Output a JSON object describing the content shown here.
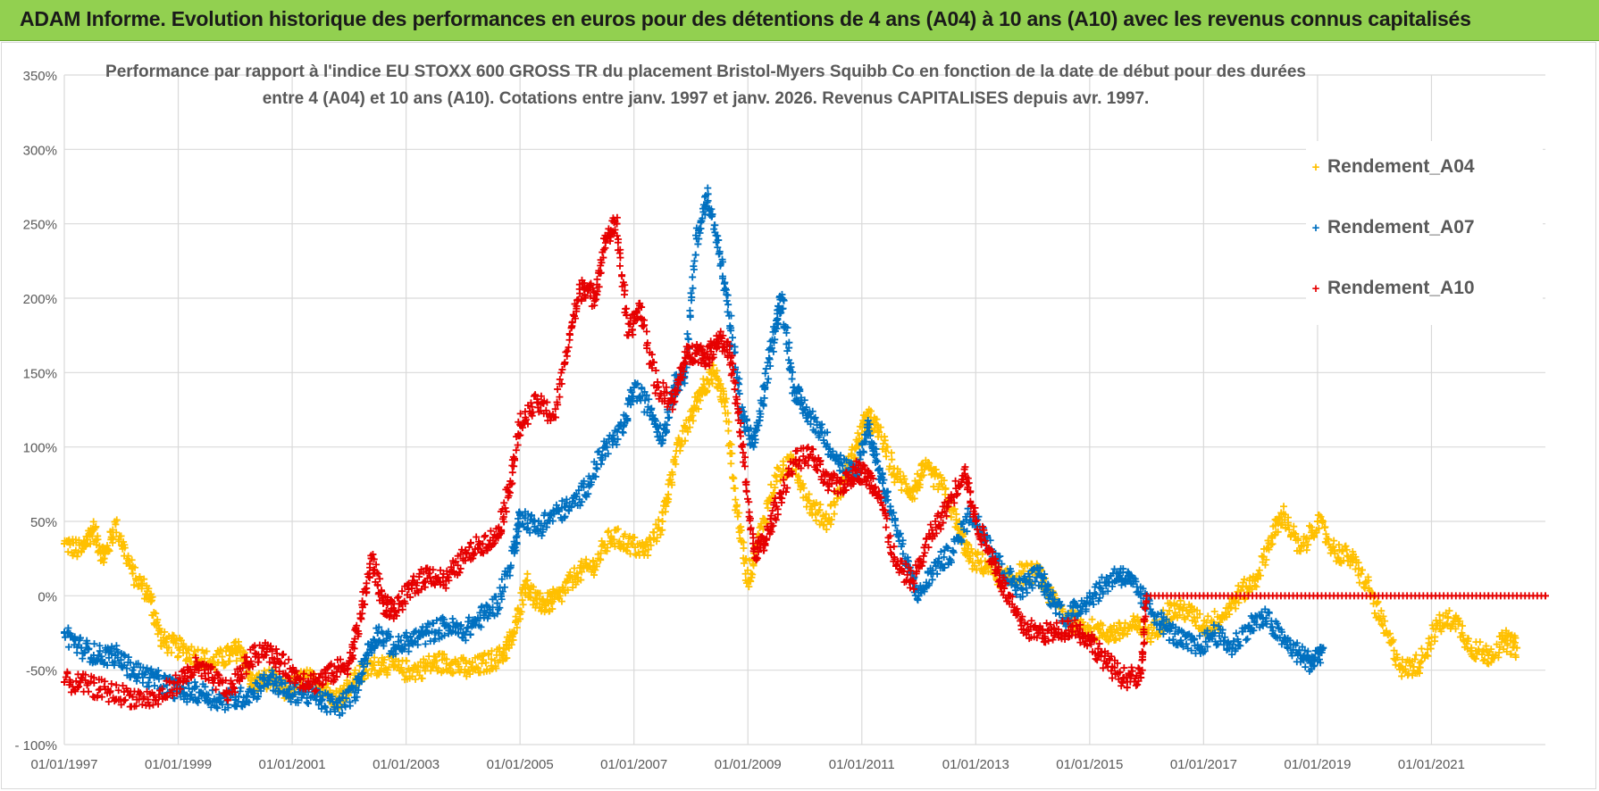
{
  "banner": {
    "title": "ADAM Informe. Evolution historique des performances en euros pour des détentions de 4 ans (A04) à 10 ans (A10) avec les revenus connus capitalisés",
    "background_color": "#92d050"
  },
  "chart_data": {
    "type": "scatter",
    "title_line1": "Performance par rapport à l'indice EU STOXX 600 GROSS TR  du placement Bristol-Myers Squibb Co en fonction de la date de début pour des durées",
    "title_line2": "entre 4 (A04) et 10 ans (A10).  Cotations entre janv. 1997 et janv. 2026. Revenus CAPITALISES depuis avr. 1997.",
    "xlabel": "",
    "ylabel": "",
    "x_range": [
      1997.0,
      2023.0
    ],
    "ylim": [
      -100,
      350
    ],
    "y_ticks": [
      350,
      300,
      250,
      200,
      150,
      100,
      50,
      0,
      -50,
      -100
    ],
    "y_tick_labels": [
      "350%",
      "300%",
      "250%",
      "200%",
      "150%",
      "100%",
      "50%",
      "0%",
      "-50%",
      "- 100%"
    ],
    "x_ticks": [
      1997,
      1999,
      2001,
      2003,
      2005,
      2007,
      2009,
      2011,
      2013,
      2015,
      2017,
      2019,
      2021
    ],
    "x_tick_labels": [
      "01/01/1997",
      "01/01/1999",
      "01/01/2001",
      "01/01/2003",
      "01/01/2005",
      "01/01/2007",
      "01/01/2009",
      "01/01/2011",
      "01/01/2013",
      "01/01/2015",
      "01/01/2017",
      "01/01/2019",
      "01/01/2021"
    ],
    "legend_position": "top-right",
    "series": [
      {
        "name": "Rendement_A04",
        "color": "#ffc000",
        "points": [
          [
            1997.0,
            35
          ],
          [
            1997.3,
            30
          ],
          [
            1997.5,
            45
          ],
          [
            1997.7,
            25
          ],
          [
            1997.9,
            48
          ],
          [
            1998.2,
            15
          ],
          [
            1998.5,
            0
          ],
          [
            1998.7,
            -30
          ],
          [
            1999.0,
            -35
          ],
          [
            1999.3,
            -40
          ],
          [
            1999.6,
            -45
          ],
          [
            1999.9,
            -40
          ],
          [
            2000.1,
            -35
          ],
          [
            2000.3,
            -60
          ],
          [
            2000.6,
            -55
          ],
          [
            2000.9,
            -65
          ],
          [
            2001.2,
            -55
          ],
          [
            2001.5,
            -60
          ],
          [
            2001.8,
            -70
          ],
          [
            2002.0,
            -60
          ],
          [
            2002.3,
            -50
          ],
          [
            2002.6,
            -45
          ],
          [
            2002.9,
            -50
          ],
          [
            2003.2,
            -50
          ],
          [
            2003.5,
            -45
          ],
          [
            2003.8,
            -45
          ],
          [
            2004.1,
            -50
          ],
          [
            2004.4,
            -45
          ],
          [
            2004.7,
            -40
          ],
          [
            2004.9,
            -25
          ],
          [
            2005.1,
            10
          ],
          [
            2005.3,
            -5
          ],
          [
            2005.5,
            -5
          ],
          [
            2005.7,
            0
          ],
          [
            2006.0,
            15
          ],
          [
            2006.3,
            20
          ],
          [
            2006.6,
            40
          ],
          [
            2006.9,
            35
          ],
          [
            2007.2,
            30
          ],
          [
            2007.5,
            50
          ],
          [
            2007.7,
            90
          ],
          [
            2008.0,
            120
          ],
          [
            2008.2,
            140
          ],
          [
            2008.4,
            150
          ],
          [
            2008.6,
            130
          ],
          [
            2008.8,
            60
          ],
          [
            2009.0,
            10
          ],
          [
            2009.2,
            40
          ],
          [
            2009.5,
            80
          ],
          [
            2009.8,
            90
          ],
          [
            2010.1,
            60
          ],
          [
            2010.4,
            50
          ],
          [
            2010.7,
            80
          ],
          [
            2010.9,
            100
          ],
          [
            2011.1,
            120
          ],
          [
            2011.3,
            110
          ],
          [
            2011.6,
            80
          ],
          [
            2011.9,
            70
          ],
          [
            2012.1,
            85
          ],
          [
            2012.4,
            75
          ],
          [
            2012.7,
            45
          ],
          [
            2012.9,
            25
          ],
          [
            2013.2,
            20
          ],
          [
            2013.5,
            10
          ],
          [
            2013.8,
            15
          ],
          [
            2014.1,
            15
          ],
          [
            2014.3,
            0
          ],
          [
            2014.6,
            -15
          ],
          [
            2014.9,
            -20
          ],
          [
            2015.2,
            -25
          ],
          [
            2015.5,
            -25
          ],
          [
            2015.8,
            -20
          ],
          [
            2016.1,
            -25
          ],
          [
            2016.4,
            -10
          ],
          [
            2016.7,
            -10
          ],
          [
            2017.0,
            -20
          ],
          [
            2017.3,
            -15
          ],
          [
            2017.6,
            0
          ],
          [
            2017.9,
            10
          ],
          [
            2018.2,
            40
          ],
          [
            2018.4,
            55
          ],
          [
            2018.7,
            30
          ],
          [
            2019.0,
            50
          ],
          [
            2019.3,
            30
          ],
          [
            2019.6,
            25
          ],
          [
            2019.9,
            5
          ],
          [
            2020.2,
            -25
          ],
          [
            2020.5,
            -50
          ],
          [
            2020.8,
            -45
          ],
          [
            2021.1,
            -20
          ],
          [
            2021.4,
            -15
          ],
          [
            2021.7,
            -35
          ],
          [
            2022.0,
            -40
          ],
          [
            2022.3,
            -30
          ],
          [
            2022.5,
            -35
          ]
        ]
      },
      {
        "name": "Rendement_A07",
        "color": "#0070c0",
        "points": [
          [
            1997.0,
            -25
          ],
          [
            1997.3,
            -35
          ],
          [
            1997.6,
            -40
          ],
          [
            1997.9,
            -40
          ],
          [
            1998.2,
            -50
          ],
          [
            1998.5,
            -55
          ],
          [
            1998.8,
            -60
          ],
          [
            1999.1,
            -65
          ],
          [
            1999.4,
            -65
          ],
          [
            1999.7,
            -70
          ],
          [
            2000.0,
            -70
          ],
          [
            2000.3,
            -65
          ],
          [
            2000.6,
            -55
          ],
          [
            2000.9,
            -65
          ],
          [
            2001.2,
            -65
          ],
          [
            2001.5,
            -70
          ],
          [
            2001.8,
            -75
          ],
          [
            2002.1,
            -65
          ],
          [
            2002.3,
            -40
          ],
          [
            2002.5,
            -25
          ],
          [
            2002.8,
            -35
          ],
          [
            2003.1,
            -30
          ],
          [
            2003.4,
            -25
          ],
          [
            2003.7,
            -20
          ],
          [
            2004.0,
            -25
          ],
          [
            2004.3,
            -15
          ],
          [
            2004.6,
            -5
          ],
          [
            2004.9,
            30
          ],
          [
            2005.0,
            55
          ],
          [
            2005.3,
            45
          ],
          [
            2005.6,
            55
          ],
          [
            2005.9,
            60
          ],
          [
            2006.2,
            75
          ],
          [
            2006.5,
            100
          ],
          [
            2006.8,
            110
          ],
          [
            2007.0,
            140
          ],
          [
            2007.3,
            125
          ],
          [
            2007.5,
            105
          ],
          [
            2007.7,
            140
          ],
          [
            2007.9,
            150
          ],
          [
            2008.1,
            240
          ],
          [
            2008.3,
            270
          ],
          [
            2008.5,
            230
          ],
          [
            2008.7,
            180
          ],
          [
            2008.9,
            120
          ],
          [
            2009.1,
            100
          ],
          [
            2009.3,
            140
          ],
          [
            2009.5,
            185
          ],
          [
            2009.6,
            200
          ],
          [
            2009.8,
            140
          ],
          [
            2010.0,
            125
          ],
          [
            2010.3,
            110
          ],
          [
            2010.6,
            90
          ],
          [
            2010.9,
            80
          ],
          [
            2011.1,
            115
          ],
          [
            2011.3,
            85
          ],
          [
            2011.5,
            60
          ],
          [
            2011.8,
            20
          ],
          [
            2012.0,
            0
          ],
          [
            2012.3,
            20
          ],
          [
            2012.6,
            30
          ],
          [
            2012.9,
            55
          ],
          [
            2013.2,
            40
          ],
          [
            2013.5,
            15
          ],
          [
            2013.8,
            5
          ],
          [
            2014.1,
            15
          ],
          [
            2014.3,
            0
          ],
          [
            2014.6,
            -15
          ],
          [
            2014.9,
            -5
          ],
          [
            2015.2,
            5
          ],
          [
            2015.5,
            15
          ],
          [
            2015.7,
            10
          ],
          [
            2016.0,
            -5
          ],
          [
            2016.3,
            -20
          ],
          [
            2016.6,
            -30
          ],
          [
            2016.9,
            -35
          ],
          [
            2017.2,
            -25
          ],
          [
            2017.5,
            -35
          ],
          [
            2017.8,
            -20
          ],
          [
            2018.1,
            -15
          ],
          [
            2018.4,
            -30
          ],
          [
            2018.7,
            -40
          ],
          [
            2018.9,
            -45
          ],
          [
            2019.1,
            -35
          ]
        ]
      },
      {
        "name": "Rendement_A10",
        "color": "#e60000",
        "points": [
          [
            1997.0,
            -58
          ],
          [
            1997.4,
            -60
          ],
          [
            1997.8,
            -65
          ],
          [
            1998.2,
            -68
          ],
          [
            1998.6,
            -70
          ],
          [
            1999.0,
            -58
          ],
          [
            1999.3,
            -48
          ],
          [
            1999.6,
            -55
          ],
          [
            1999.9,
            -65
          ],
          [
            2000.2,
            -45
          ],
          [
            2000.5,
            -35
          ],
          [
            2000.8,
            -45
          ],
          [
            2001.1,
            -55
          ],
          [
            2001.4,
            -58
          ],
          [
            2001.7,
            -52
          ],
          [
            2002.0,
            -45
          ],
          [
            2002.2,
            -15
          ],
          [
            2002.4,
            25
          ],
          [
            2002.6,
            -5
          ],
          [
            2002.8,
            -10
          ],
          [
            2003.1,
            5
          ],
          [
            2003.4,
            15
          ],
          [
            2003.7,
            10
          ],
          [
            2004.0,
            25
          ],
          [
            2004.3,
            35
          ],
          [
            2004.6,
            40
          ],
          [
            2004.8,
            70
          ],
          [
            2005.0,
            115
          ],
          [
            2005.3,
            130
          ],
          [
            2005.6,
            120
          ],
          [
            2005.9,
            180
          ],
          [
            2006.1,
            210
          ],
          [
            2006.3,
            200
          ],
          [
            2006.5,
            240
          ],
          [
            2006.7,
            250
          ],
          [
            2006.9,
            175
          ],
          [
            2007.1,
            195
          ],
          [
            2007.4,
            140
          ],
          [
            2007.7,
            130
          ],
          [
            2007.9,
            160
          ],
          [
            2008.1,
            165
          ],
          [
            2008.3,
            160
          ],
          [
            2008.5,
            175
          ],
          [
            2008.7,
            160
          ],
          [
            2008.9,
            100
          ],
          [
            2009.1,
            30
          ],
          [
            2009.3,
            35
          ],
          [
            2009.5,
            60
          ],
          [
            2009.8,
            90
          ],
          [
            2010.1,
            95
          ],
          [
            2010.4,
            75
          ],
          [
            2010.7,
            75
          ],
          [
            2010.9,
            85
          ],
          [
            2011.1,
            80
          ],
          [
            2011.3,
            70
          ],
          [
            2011.6,
            20
          ],
          [
            2011.9,
            10
          ],
          [
            2012.2,
            40
          ],
          [
            2012.5,
            60
          ],
          [
            2012.8,
            85
          ],
          [
            2013.0,
            50
          ],
          [
            2013.3,
            25
          ],
          [
            2013.5,
            5
          ],
          [
            2013.8,
            -20
          ],
          [
            2014.1,
            -25
          ],
          [
            2014.4,
            -25
          ],
          [
            2014.7,
            -20
          ],
          [
            2015.0,
            -30
          ],
          [
            2015.3,
            -45
          ],
          [
            2015.6,
            -55
          ],
          [
            2015.9,
            -55
          ],
          [
            2016.0,
            0
          ],
          [
            2017.0,
            0
          ],
          [
            2018.0,
            0
          ],
          [
            2019.0,
            0
          ],
          [
            2020.0,
            0
          ],
          [
            2021.0,
            0
          ],
          [
            2022.0,
            0
          ],
          [
            2023.0,
            0
          ]
        ]
      }
    ]
  },
  "legend": {
    "items": [
      {
        "label": "Rendement_A04",
        "color": "#ffc000"
      },
      {
        "label": "Rendement_A07",
        "color": "#0070c0"
      },
      {
        "label": "Rendement_A10",
        "color": "#e60000"
      }
    ]
  }
}
